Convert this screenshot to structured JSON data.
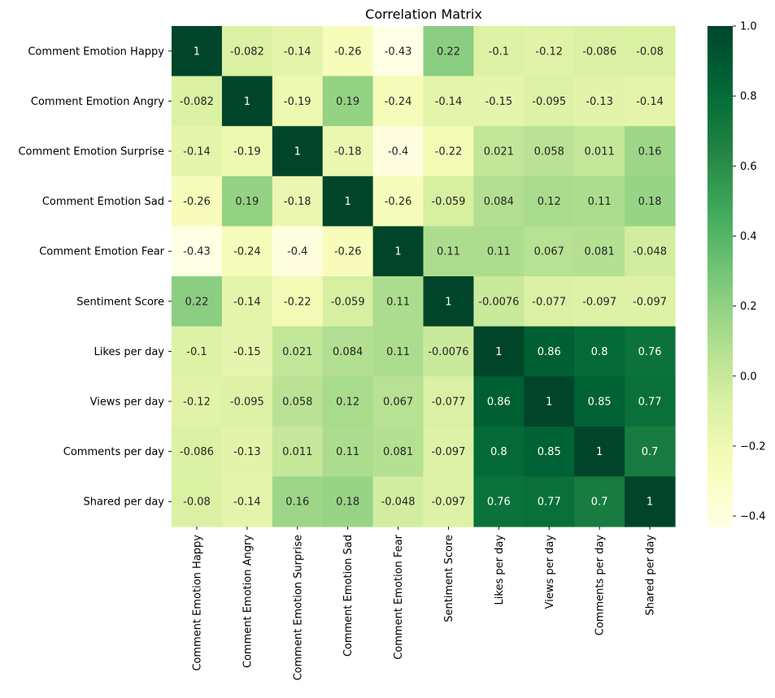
{
  "chart_data": {
    "type": "heatmap",
    "title": "Correlation Matrix",
    "xlabel": "",
    "ylabel": "",
    "labels": [
      "Comment Emotion Happy",
      "Comment Emotion Angry",
      "Comment Emotion Surprise",
      "Comment Emotion Sad",
      "Comment Emotion Fear",
      "Sentiment Score",
      "Likes per day",
      "Views per day",
      "Comments per day",
      "Shared per day"
    ],
    "matrix": [
      [
        "1",
        "-0.082",
        "-0.14",
        "-0.26",
        "-0.43",
        "0.22",
        "-0.1",
        "-0.12",
        "-0.086",
        "-0.08"
      ],
      [
        "-0.082",
        "1",
        "-0.19",
        "0.19",
        "-0.24",
        "-0.14",
        "-0.15",
        "-0.095",
        "-0.13",
        "-0.14"
      ],
      [
        "-0.14",
        "-0.19",
        "1",
        "-0.18",
        "-0.4",
        "-0.22",
        "0.021",
        "0.058",
        "0.011",
        "0.16"
      ],
      [
        "-0.26",
        "0.19",
        "-0.18",
        "1",
        "-0.26",
        "-0.059",
        "0.084",
        "0.12",
        "0.11",
        "0.18"
      ],
      [
        "-0.43",
        "-0.24",
        "-0.4",
        "-0.26",
        "1",
        "0.11",
        "0.11",
        "0.067",
        "0.081",
        "-0.048"
      ],
      [
        "0.22",
        "-0.14",
        "-0.22",
        "-0.059",
        "0.11",
        "1",
        "-0.0076",
        "-0.077",
        "-0.097",
        "-0.097"
      ],
      [
        "-0.1",
        "-0.15",
        "0.021",
        "0.084",
        "0.11",
        "-0.0076",
        "1",
        "0.86",
        "0.8",
        "0.76"
      ],
      [
        "-0.12",
        "-0.095",
        "0.058",
        "0.12",
        "0.067",
        "-0.077",
        "0.86",
        "1",
        "0.85",
        "0.77"
      ],
      [
        "-0.086",
        "-0.13",
        "0.011",
        "0.11",
        "0.081",
        "-0.097",
        "0.8",
        "0.85",
        "1",
        "0.7"
      ],
      [
        "-0.08",
        "-0.14",
        "0.16",
        "0.18",
        "-0.048",
        "-0.097",
        "0.76",
        "0.77",
        "0.7",
        "1"
      ]
    ],
    "colorbar": {
      "range": [
        -0.43,
        1.0
      ],
      "ticks": [
        1.0,
        0.8,
        0.6,
        0.4,
        0.2,
        0.0,
        -0.2,
        -0.4
      ],
      "tick_labels": [
        "1.0",
        "0.8",
        "0.6",
        "0.4",
        "0.2",
        "0.0",
        "−0.2",
        "−0.4"
      ],
      "colormap": "YlGn"
    }
  }
}
